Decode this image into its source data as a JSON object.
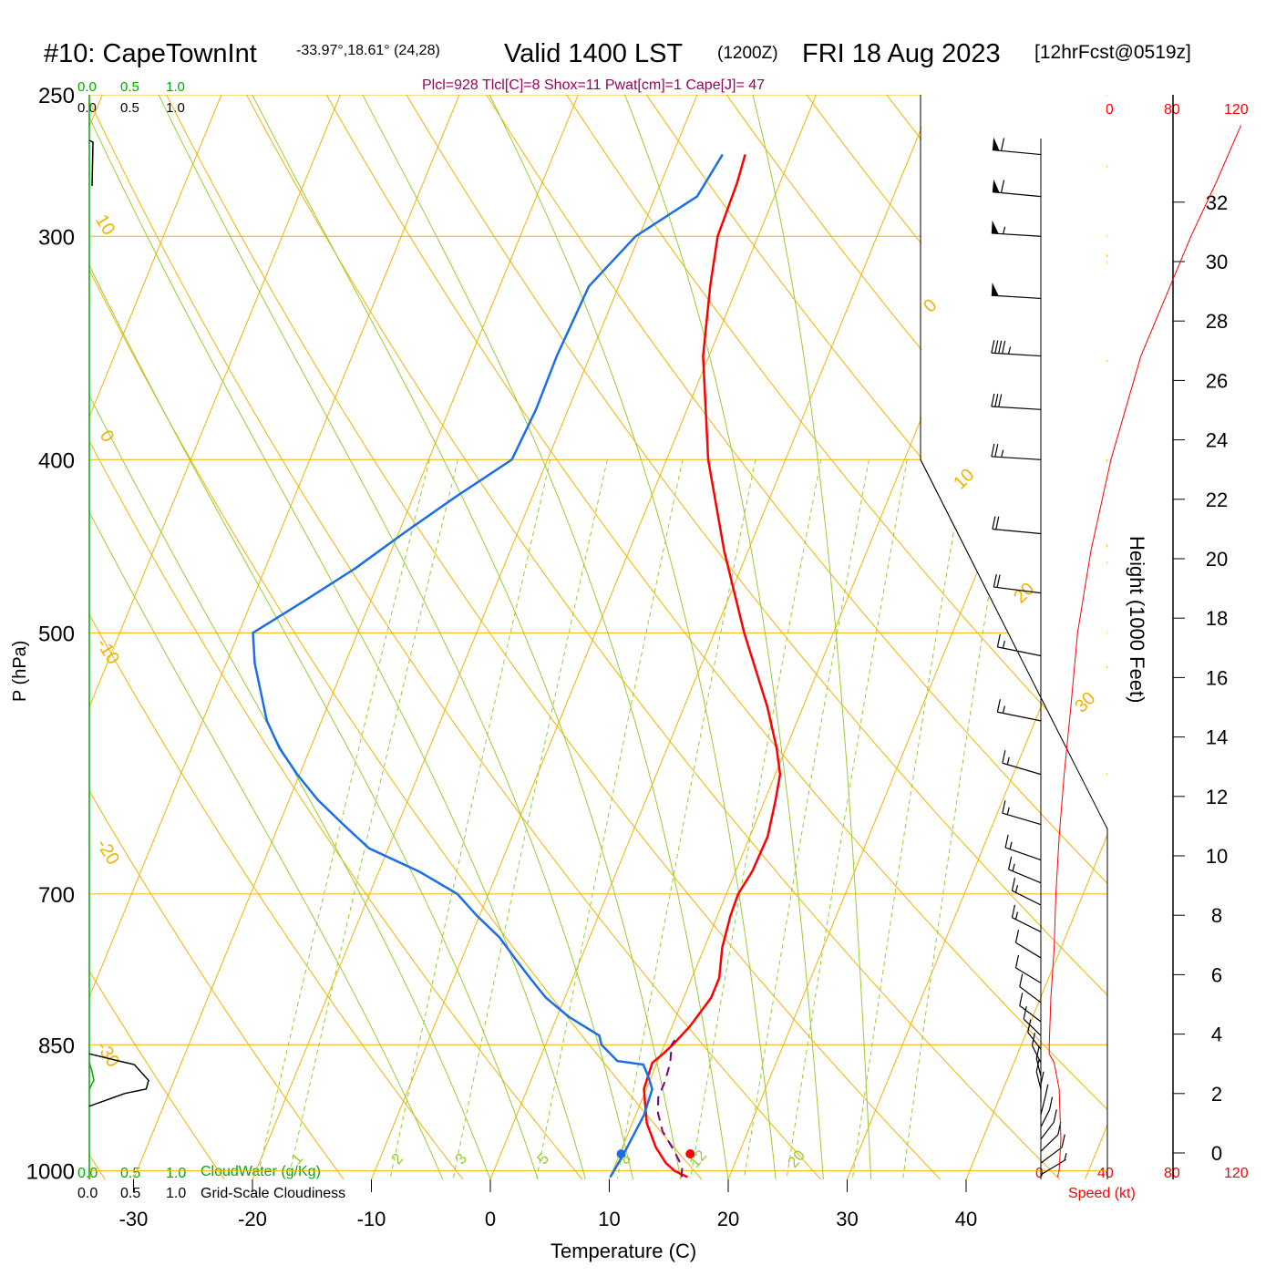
{
  "header": {
    "title_station": "#10: CapeTownInt",
    "title_coords": "-33.97°,18.61° (24,28)",
    "title_valid": "Valid 1400 LST",
    "title_z": "(1200Z)",
    "title_date": "FRI 18 Aug 2023",
    "title_fcst": "[12hrFcst@0519z]",
    "indices": "Plcl=928 Tlcl[C]=8 Shox=11 Pwat[cm]=1 Cape[J]= 47"
  },
  "colors": {
    "temperature": "#ff0000",
    "dewpoint": "#1a6fe6",
    "parcel": "#800080",
    "isobar_isotherm": "#f0b400",
    "dry_adiabat": "#f0b400",
    "moist_adiabat": "#99cc33",
    "mixing_ratio": "#99cc33",
    "cloudwater": "#00aa00",
    "cloudiness": "#000000",
    "speed": "#ff0000",
    "magenta": "#a0005a"
  },
  "scales": {
    "cloud_green_ticks": [
      "0.0",
      "0.5",
      "1.0"
    ],
    "cloud_black_ticks": [
      "0.0",
      "0.5",
      "1.0"
    ],
    "cloudwater_label": "CloudWater (g/Kg)",
    "cloudiness_label": "Grid-Scale Cloudiness",
    "speed_ticks": [
      "0",
      "40",
      "80",
      "120"
    ],
    "speed_label": "Speed (kt)"
  },
  "chart_data": {
    "type": "skew-t",
    "xlabel": "Temperature (C)",
    "ylabel": "P (hPa)",
    "y2label": "Height (1000 Feet)",
    "x_ticks": [
      -30,
      -20,
      -10,
      0,
      10,
      20,
      30,
      40
    ],
    "x_tick_labels": [
      "-30",
      "-20",
      "-10",
      "0",
      "10",
      "20",
      "30",
      "40"
    ],
    "p_ticks": [
      250,
      300,
      400,
      500,
      700,
      850,
      1000
    ],
    "p_tick_labels": [
      "250",
      "300",
      "400",
      "500",
      "700",
      "850",
      "1000"
    ],
    "height_ticks_kft": [
      0,
      2,
      4,
      6,
      8,
      10,
      12,
      14,
      16,
      18,
      20,
      22,
      24,
      26,
      28,
      30,
      32
    ],
    "height_tick_labels": [
      "0",
      "2",
      "4",
      "6",
      "8",
      "10",
      "12",
      "14",
      "16",
      "18",
      "20",
      "22",
      "24",
      "26",
      "28",
      "30",
      "32"
    ],
    "dry_adiabat_labels": [
      "10",
      "0",
      "-10",
      "-20",
      "-30",
      "0",
      "10",
      "20",
      "30"
    ],
    "mixing_ratio_labels": [
      "1",
      "2",
      "3",
      "5",
      "8",
      "12",
      "20"
    ],
    "temperature": {
      "p": [
        1008,
        1000,
        990,
        970,
        940,
        900,
        870,
        860,
        850,
        845,
        830,
        800,
        780,
        750,
        720,
        700,
        680,
        650,
        620,
        600,
        580,
        550,
        500,
        450,
        400,
        350,
        320,
        300,
        280,
        270
      ],
      "T": [
        16.5,
        15.2,
        14.2,
        12.8,
        11.2,
        9.8,
        9.6,
        10.2,
        10.7,
        10.9,
        11.5,
        12.3,
        12.3,
        11.5,
        11.1,
        11.0,
        11.4,
        11.5,
        10.9,
        10.4,
        9.2,
        7.0,
        2.5,
        -2.0,
        -6.5,
        -10.5,
        -12.3,
        -13.4,
        -13.6,
        -13.9
      ]
    },
    "dewpoint": {
      "p": [
        1008,
        1000,
        970,
        930,
        900,
        885,
        872,
        868,
        850,
        840,
        820,
        800,
        780,
        760,
        740,
        720,
        700,
        680,
        660,
        640,
        620,
        600,
        580,
        560,
        520,
        500,
        480,
        460,
        440,
        420,
        400,
        375,
        350,
        320,
        300,
        285,
        270
      ],
      "T": [
        10.0,
        10.1,
        10.4,
        10.7,
        10.5,
        9.7,
        8.9,
        6.6,
        4.7,
        4.2,
        1.0,
        -1.6,
        -3.6,
        -5.6,
        -7.6,
        -10.2,
        -12.6,
        -16.6,
        -21.6,
        -24.6,
        -27.6,
        -30.2,
        -32.6,
        -34.6,
        -37.6,
        -38.8,
        -35.6,
        -32.4,
        -29.6,
        -26.5,
        -23.0,
        -22.7,
        -22.8,
        -22.5,
        -20.3,
        -16.5,
        -15.8
      ]
    },
    "parcel": {
      "p": [
        1008,
        995,
        975,
        950,
        928,
        910,
        890,
        870,
        850,
        845
      ],
      "T": [
        16.0,
        15.7,
        14.5,
        12.8,
        11.8,
        11.3,
        11.3,
        11.1,
        10.6,
        10.7
      ]
    },
    "surface_markers": {
      "temperature": 16.8,
      "dewpoint": 11.0
    },
    "cloudiness": {
      "p": [
        860,
        868,
        872,
        890,
        900,
        905,
        920
      ],
      "frac": [
        0.0,
        0.25,
        0.38,
        0.5,
        0.48,
        0.3,
        0.0
      ]
    },
    "cloudwater": {
      "p": [
        870,
        880,
        890,
        900
      ],
      "value": [
        0.0,
        0.03,
        0.05,
        0.0
      ]
    },
    "wind_barbs": [
      {
        "p": 270,
        "speed_kt": 60,
        "dir_deg": 285
      },
      {
        "p": 285,
        "speed_kt": 60,
        "dir_deg": 285
      },
      {
        "p": 300,
        "speed_kt": 55,
        "dir_deg": 280
      },
      {
        "p": 325,
        "speed_kt": 50,
        "dir_deg": 280
      },
      {
        "p": 350,
        "speed_kt": 45,
        "dir_deg": 280
      },
      {
        "p": 375,
        "speed_kt": 30,
        "dir_deg": 280
      },
      {
        "p": 400,
        "speed_kt": 25,
        "dir_deg": 280
      },
      {
        "p": 440,
        "speed_kt": 20,
        "dir_deg": 285
      },
      {
        "p": 475,
        "speed_kt": 20,
        "dir_deg": 290
      },
      {
        "p": 515,
        "speed_kt": 15,
        "dir_deg": 300
      },
      {
        "p": 560,
        "speed_kt": 15,
        "dir_deg": 300
      },
      {
        "p": 600,
        "speed_kt": 15,
        "dir_deg": 310
      },
      {
        "p": 640,
        "speed_kt": 15,
        "dir_deg": 310
      },
      {
        "p": 670,
        "speed_kt": 15,
        "dir_deg": 315
      },
      {
        "p": 690,
        "speed_kt": 15,
        "dir_deg": 320
      },
      {
        "p": 710,
        "speed_kt": 15,
        "dir_deg": 325
      },
      {
        "p": 735,
        "speed_kt": 15,
        "dir_deg": 325
      },
      {
        "p": 760,
        "speed_kt": 10,
        "dir_deg": 330
      },
      {
        "p": 785,
        "speed_kt": 10,
        "dir_deg": 330
      },
      {
        "p": 805,
        "speed_kt": 10,
        "dir_deg": 335
      },
      {
        "p": 825,
        "speed_kt": 10,
        "dir_deg": 335
      },
      {
        "p": 840,
        "speed_kt": 10,
        "dir_deg": 340
      },
      {
        "p": 855,
        "speed_kt": 10,
        "dir_deg": 345
      },
      {
        "p": 870,
        "speed_kt": 10,
        "dir_deg": 350
      },
      {
        "p": 885,
        "speed_kt": 10,
        "dir_deg": 355
      },
      {
        "p": 900,
        "speed_kt": 10,
        "dir_deg": 355
      },
      {
        "p": 915,
        "speed_kt": 10,
        "dir_deg": 0
      },
      {
        "p": 930,
        "speed_kt": 10,
        "dir_deg": 5
      },
      {
        "p": 945,
        "speed_kt": 10,
        "dir_deg": 10
      },
      {
        "p": 960,
        "speed_kt": 10,
        "dir_deg": 15
      },
      {
        "p": 975,
        "speed_kt": 10,
        "dir_deg": 20
      },
      {
        "p": 990,
        "speed_kt": 10,
        "dir_deg": 25
      },
      {
        "p": 1005,
        "speed_kt": 5,
        "dir_deg": 30
      }
    ],
    "wind_speed_profile": {
      "p": [
        1008,
        1000,
        960,
        900,
        870,
        860,
        850,
        800,
        750,
        700,
        650,
        600,
        550,
        500,
        450,
        400,
        350,
        300,
        280,
        260
      ],
      "speed_kt": [
        10,
        11,
        12,
        11,
        8,
        5,
        5,
        6,
        8,
        9,
        11,
        14,
        18,
        22,
        30,
        42,
        60,
        90,
        105,
        120
      ]
    }
  }
}
